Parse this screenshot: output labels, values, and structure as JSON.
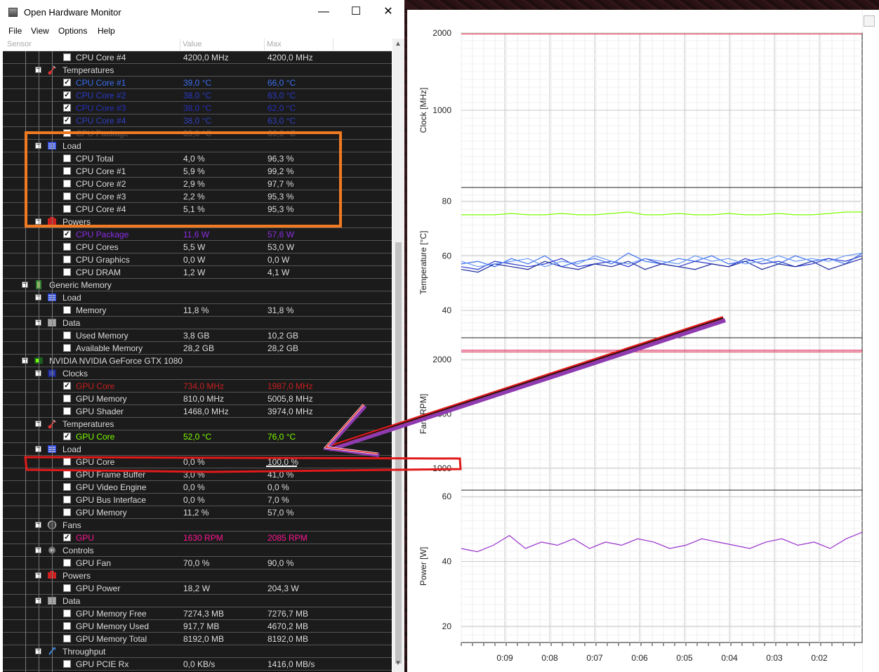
{
  "window": {
    "title": "Open Hardware Monitor",
    "minimize": "—",
    "maximize": "☐",
    "close": "✕"
  },
  "menu": [
    "File",
    "View",
    "Options",
    "Help"
  ],
  "columns": {
    "sensor": "Sensor",
    "value": "Value",
    "max": "Max"
  },
  "rows": [
    {
      "t": "s",
      "label": "CPU Core #4",
      "value": "4200,0 MHz",
      "max": "4200,0 MHz",
      "checked": false,
      "color": ""
    },
    {
      "t": "g",
      "label": "Temperatures",
      "icon": "thermometer-icon"
    },
    {
      "t": "s",
      "label": "CPU Core #1",
      "value": "39,0 °C",
      "max": "66,0 °C",
      "checked": true,
      "color": "#3a6ef0"
    },
    {
      "t": "s",
      "label": "CPU Core #2",
      "value": "38,0 °C",
      "max": "63,0 °C",
      "checked": true,
      "color": "#2a3ac8"
    },
    {
      "t": "s",
      "label": "CPU Core #3",
      "value": "38,0 °C",
      "max": "62,0 °C",
      "checked": true,
      "color": "#2630b8"
    },
    {
      "t": "s",
      "label": "CPU Core #4",
      "value": "38,0 °C",
      "max": "63,0 °C",
      "checked": true,
      "color": "#3040c0"
    },
    {
      "t": "s",
      "label": "CPU Package",
      "value": "39,0 °C",
      "max": "66,0 °C",
      "checked": false,
      "color": "#555"
    },
    {
      "t": "g",
      "label": "Load",
      "icon": "load-icon"
    },
    {
      "t": "s",
      "label": "CPU Total",
      "value": "4,0 %",
      "max": "96,3 %",
      "checked": false,
      "color": ""
    },
    {
      "t": "s",
      "label": "CPU Core #1",
      "value": "5,9 %",
      "max": "99,2 %",
      "checked": false,
      "color": ""
    },
    {
      "t": "s",
      "label": "CPU Core #2",
      "value": "2,9 %",
      "max": "97,7 %",
      "checked": false,
      "color": ""
    },
    {
      "t": "s",
      "label": "CPU Core #3",
      "value": "2,2 %",
      "max": "95,3 %",
      "checked": false,
      "color": ""
    },
    {
      "t": "s",
      "label": "CPU Core #4",
      "value": "5,1 %",
      "max": "95,3 %",
      "checked": false,
      "color": ""
    },
    {
      "t": "g",
      "label": "Powers",
      "icon": "power-icon"
    },
    {
      "t": "s",
      "label": "CPU Package",
      "value": "11,6 W",
      "max": "57,6 W",
      "checked": true,
      "color": "#8a2be2"
    },
    {
      "t": "s",
      "label": "CPU Cores",
      "value": "5,5 W",
      "max": "53,0 W",
      "checked": false,
      "color": ""
    },
    {
      "t": "s",
      "label": "CPU Graphics",
      "value": "0,0 W",
      "max": "0,0 W",
      "checked": false,
      "color": ""
    },
    {
      "t": "s",
      "label": "CPU DRAM",
      "value": "1,2 W",
      "max": "4,1 W",
      "checked": false,
      "color": ""
    },
    {
      "t": "h",
      "label": "Generic Memory",
      "icon": "memory-icon"
    },
    {
      "t": "g",
      "label": "Load",
      "icon": "load-icon"
    },
    {
      "t": "s",
      "label": "Memory",
      "value": "11,8 %",
      "max": "31,8 %",
      "checked": false,
      "color": ""
    },
    {
      "t": "g",
      "label": "Data",
      "icon": "data-icon"
    },
    {
      "t": "s",
      "label": "Used Memory",
      "value": "3,8 GB",
      "max": "10,2 GB",
      "checked": false,
      "color": ""
    },
    {
      "t": "s",
      "label": "Available Memory",
      "value": "28,2 GB",
      "max": "28,2 GB",
      "checked": false,
      "color": ""
    },
    {
      "t": "h",
      "label": "NVIDIA NVIDIA GeForce GTX 1080",
      "icon": "gpu-icon"
    },
    {
      "t": "g",
      "label": "Clocks",
      "icon": "clock-icon"
    },
    {
      "t": "s",
      "label": "GPU Core",
      "value": "734,0 MHz",
      "max": "1987,0 MHz",
      "checked": true,
      "color": "#c81e1e"
    },
    {
      "t": "s",
      "label": "GPU Memory",
      "value": "810,0 MHz",
      "max": "5005,8 MHz",
      "checked": false,
      "color": ""
    },
    {
      "t": "s",
      "label": "GPU Shader",
      "value": "1468,0 MHz",
      "max": "3974,0 MHz",
      "checked": false,
      "color": ""
    },
    {
      "t": "g",
      "label": "Temperatures",
      "icon": "thermometer-icon"
    },
    {
      "t": "s",
      "label": "GPU Core",
      "value": "52,0 °C",
      "max": "76,0 °C",
      "checked": true,
      "color": "#7cfc00"
    },
    {
      "t": "g",
      "label": "Load",
      "icon": "load-icon"
    },
    {
      "t": "s",
      "label": "GPU Core",
      "value": "0,0 %",
      "max": "100,0 %",
      "checked": false,
      "color": ""
    },
    {
      "t": "s",
      "label": "GPU Frame Buffer",
      "value": "3,0 %",
      "max": "41,0 %",
      "checked": false,
      "color": ""
    },
    {
      "t": "s",
      "label": "GPU Video Engine",
      "value": "0,0 %",
      "max": "0,0 %",
      "checked": false,
      "color": ""
    },
    {
      "t": "s",
      "label": "GPU Bus Interface",
      "value": "0,0 %",
      "max": "7,0 %",
      "checked": false,
      "color": ""
    },
    {
      "t": "s",
      "label": "GPU Memory",
      "value": "11,2 %",
      "max": "57,0 %",
      "checked": false,
      "color": ""
    },
    {
      "t": "g",
      "label": "Fans",
      "icon": "fan-icon"
    },
    {
      "t": "s",
      "label": "GPU",
      "value": "1630 RPM",
      "max": "2085 RPM",
      "checked": true,
      "color": "#ff1493"
    },
    {
      "t": "g",
      "label": "Controls",
      "icon": "control-icon"
    },
    {
      "t": "s",
      "label": "GPU Fan",
      "value": "70,0 %",
      "max": "90,0 %",
      "checked": false,
      "color": ""
    },
    {
      "t": "g",
      "label": "Powers",
      "icon": "power-icon"
    },
    {
      "t": "s",
      "label": "GPU Power",
      "value": "18,2 W",
      "max": "204,3 W",
      "checked": false,
      "color": ""
    },
    {
      "t": "g",
      "label": "Data",
      "icon": "data-icon"
    },
    {
      "t": "s",
      "label": "GPU Memory Free",
      "value": "7274,3 MB",
      "max": "7276,7 MB",
      "checked": false,
      "color": ""
    },
    {
      "t": "s",
      "label": "GPU Memory Used",
      "value": "917,7 MB",
      "max": "4670,2 MB",
      "checked": false,
      "color": ""
    },
    {
      "t": "s",
      "label": "GPU Memory Total",
      "value": "8192,0 MB",
      "max": "8192,0 MB",
      "checked": false,
      "color": ""
    },
    {
      "t": "g",
      "label": "Throughput",
      "icon": "throughput-icon"
    },
    {
      "t": "s",
      "label": "GPU PCIE Rx",
      "value": "0,0 KB/s",
      "max": "1416,0 MB/s",
      "checked": false,
      "color": ""
    }
  ],
  "chart_data": [
    {
      "type": "line",
      "ylabel": "Clock [MHz]",
      "yticks": [
        "2000",
        "1000"
      ],
      "ylim": [
        0,
        2000
      ],
      "series": [
        {
          "color": "#e0405a",
          "values": [
            1987,
            1987
          ]
        }
      ]
    },
    {
      "type": "line",
      "ylabel": "Temperature [°C]",
      "yticks": [
        "80",
        "60",
        "40"
      ],
      "ylim": [
        30,
        85
      ],
      "series": [
        {
          "color": "#7cfc00",
          "values": [
            75,
            75,
            75,
            75.5,
            75,
            75,
            75.5,
            75,
            75,
            75.5,
            76,
            75,
            75,
            75.5,
            75,
            75,
            75.5,
            75,
            75,
            75.5,
            75,
            75,
            75.5,
            76,
            76
          ]
        },
        {
          "color": "#3a6ef0",
          "values": [
            57,
            58,
            56,
            59,
            57,
            60,
            56,
            58,
            59,
            57,
            61,
            58,
            57,
            59,
            58,
            60,
            57,
            58,
            59,
            57,
            60,
            58,
            59,
            57,
            61
          ]
        },
        {
          "color": "#2a3ac8",
          "values": [
            56,
            55,
            58,
            57,
            56,
            57,
            59,
            56,
            57,
            58,
            56,
            59,
            57,
            56,
            58,
            57,
            56,
            59,
            57,
            58,
            56,
            57,
            59,
            58,
            60
          ]
        },
        {
          "color": "#1c2a9c",
          "values": [
            55,
            54,
            57,
            56,
            55,
            58,
            56,
            55,
            57,
            56,
            58,
            55,
            57,
            56,
            55,
            57,
            56,
            58,
            55,
            57,
            56,
            58,
            55,
            57,
            59
          ]
        },
        {
          "color": "#6a9af5",
          "values": [
            58,
            56,
            57,
            58,
            59,
            56,
            58,
            57,
            60,
            58,
            57,
            59,
            58,
            57,
            60,
            58,
            59,
            57,
            58,
            60,
            58,
            59,
            58,
            60,
            61
          ]
        }
      ]
    },
    {
      "type": "line",
      "ylabel": "Fan [RPM]",
      "yticks": [
        "2000",
        "1500",
        "1000"
      ],
      "ylim": [
        800,
        2200
      ],
      "series": [
        {
          "color": "#d81b60",
          "values": [
            2085,
            2085
          ]
        },
        {
          "color": "#e0405a",
          "values": [
            2070,
            2070
          ]
        }
      ]
    },
    {
      "type": "line",
      "ylabel": "Power [W]",
      "yticks": [
        "60",
        "40",
        "20"
      ],
      "ylim": [
        15,
        62
      ],
      "series": [
        {
          "color": "#9932cc",
          "values": [
            44,
            43,
            45,
            48,
            44,
            46,
            45,
            47,
            44,
            46,
            45,
            47,
            46,
            44,
            45,
            47,
            46,
            45,
            44,
            46,
            47,
            45,
            46,
            44,
            47,
            49
          ]
        }
      ]
    }
  ],
  "xaxis": [
    "0:09",
    "0:08",
    "0:07",
    "0:06",
    "0:05",
    "0:04",
    "0:03",
    "0:02"
  ],
  "colors": {
    "highlight_orange": "#f07a22",
    "highlight_red": "#e01a1a",
    "arrow": "#8e3bb0"
  }
}
